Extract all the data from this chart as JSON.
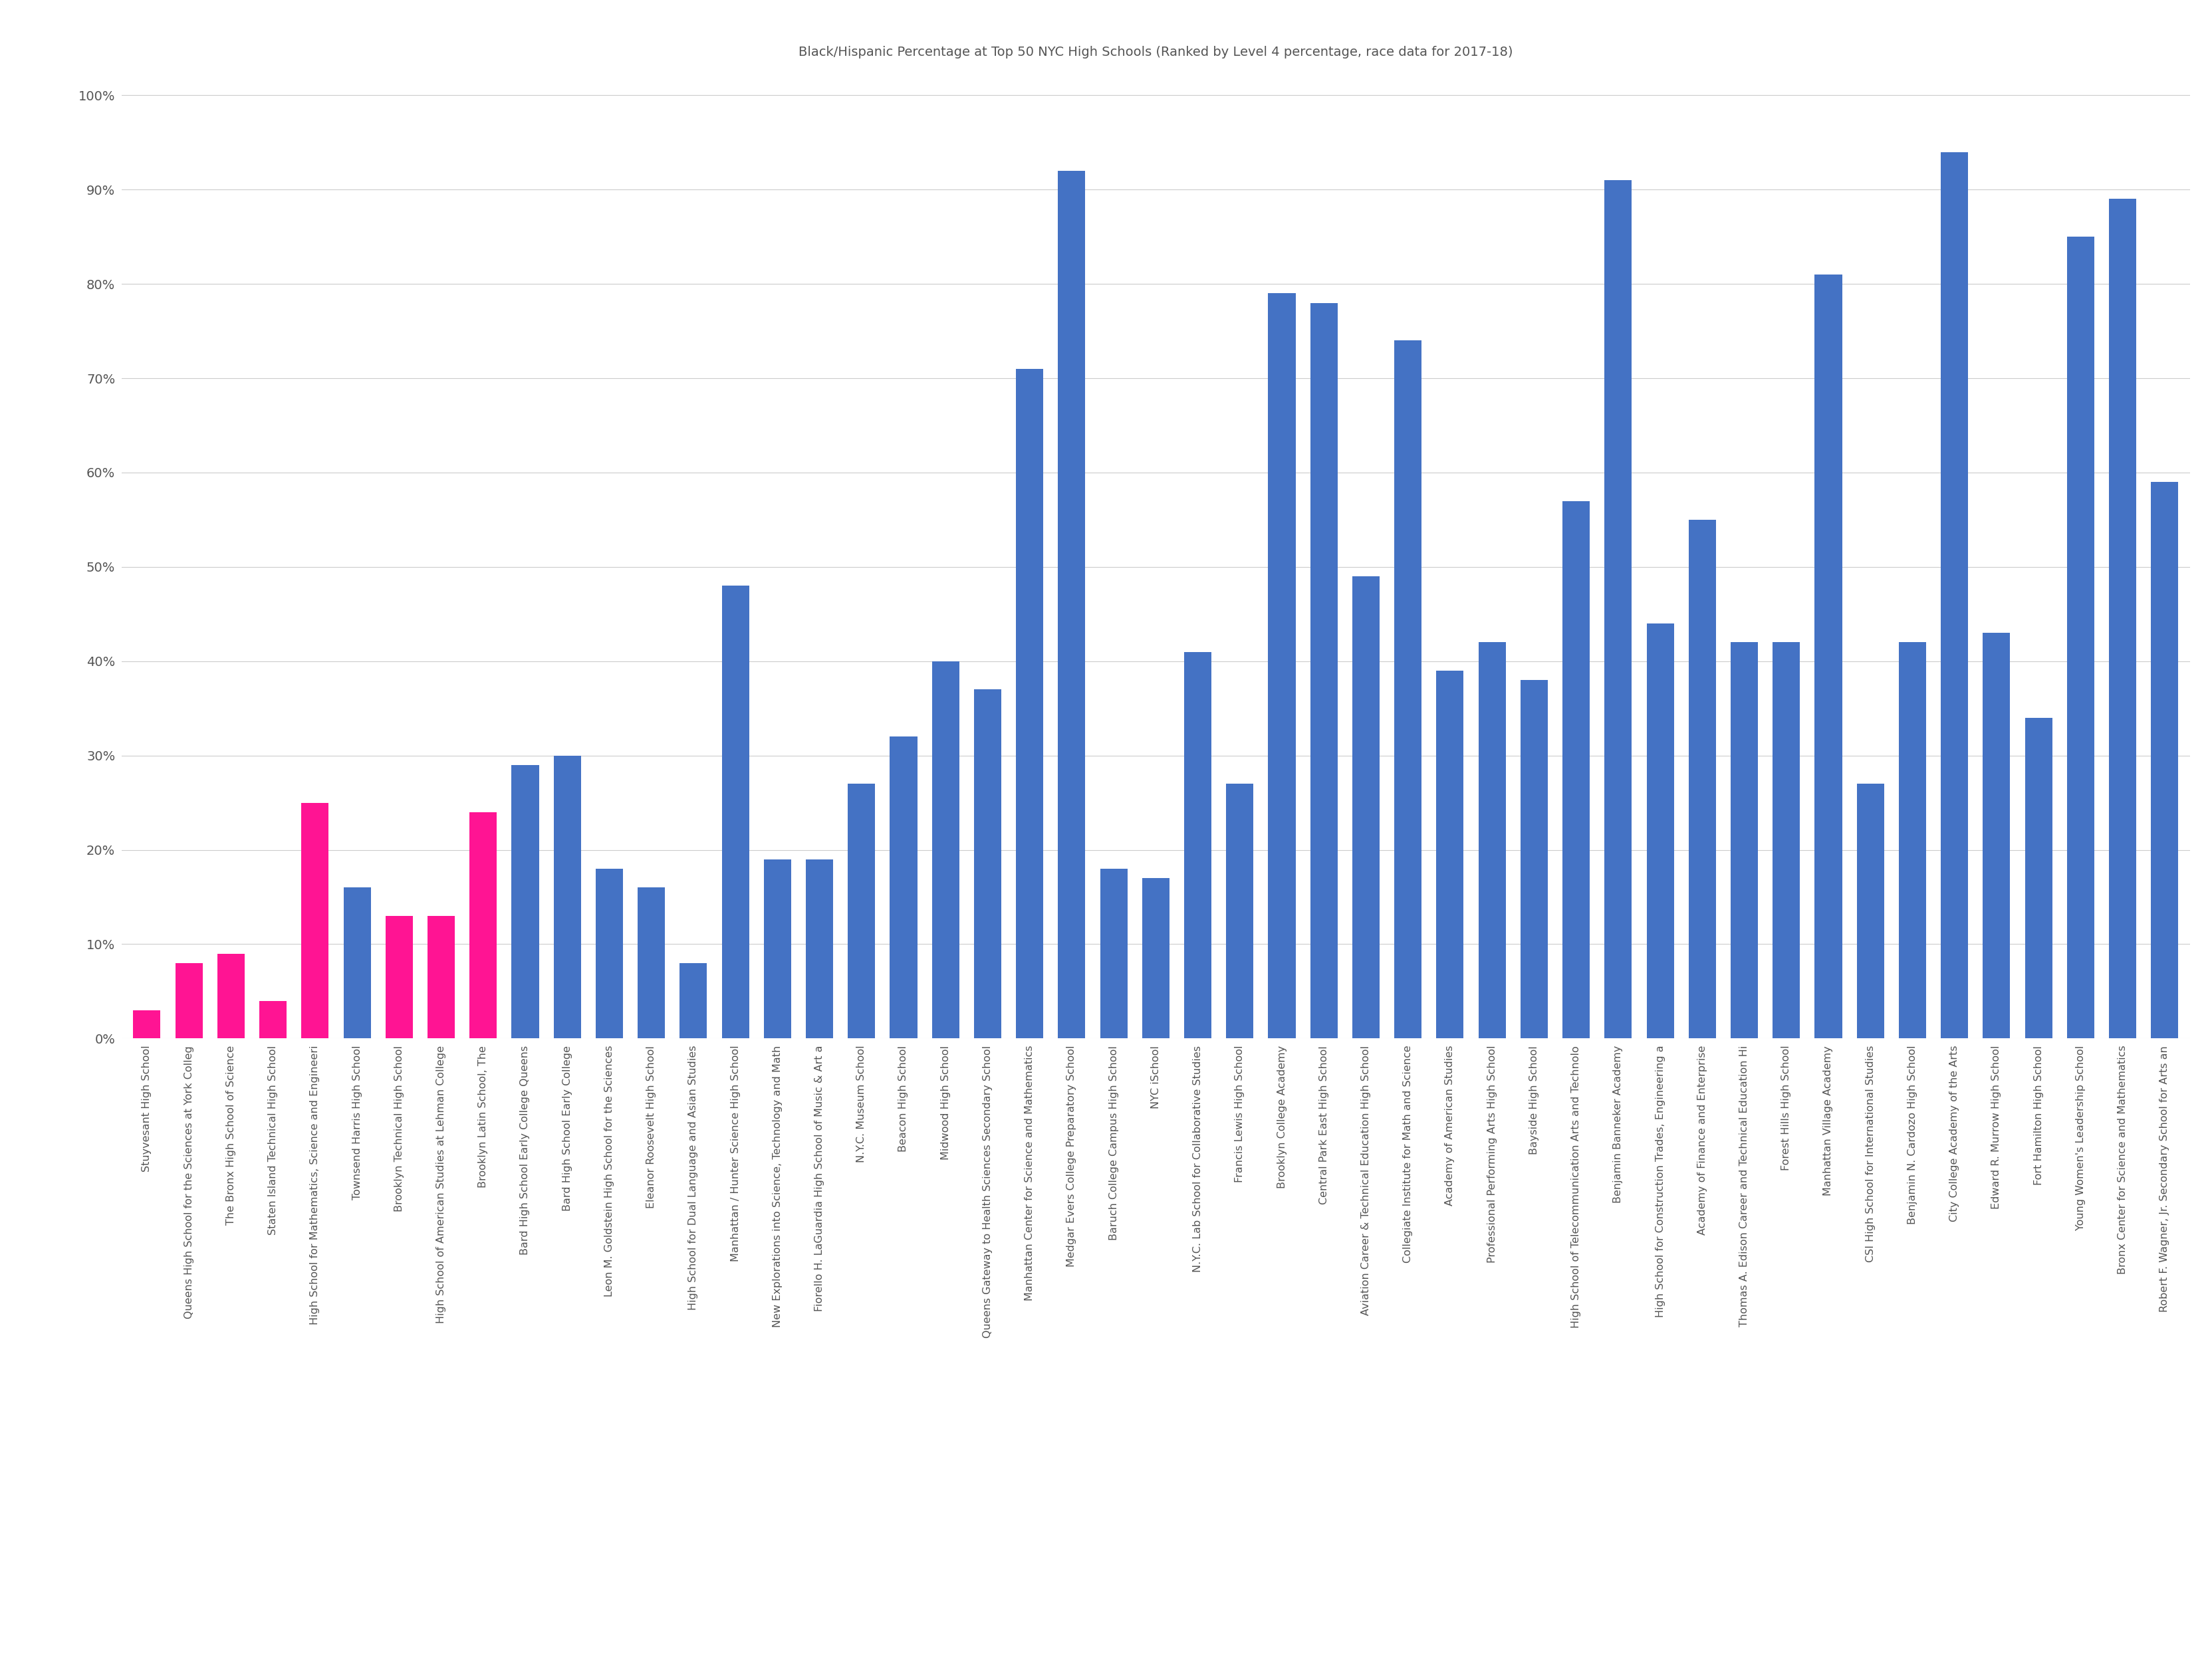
{
  "title": "Black/Hispanic Percentage at Top 50 NYC High Schools (Ranked by Level 4 percentage, race data for 2017-18)",
  "schools": [
    "Stuyvesant High School",
    "Queens High School for the Sciences at York Colleg",
    "The Bronx High School of Science",
    "Staten Island Technical High School",
    "High School for Mathematics, Science and Engineeri",
    "Townsend Harris High School",
    "Brooklyn Technical High School",
    "High School of American Studies at Lehman College",
    "Brooklyn Latin School, The",
    "Bard High School Early College Queens",
    "Bard High School Early College",
    "Leon M. Goldstein High School for the Sciences",
    "Eleanor Roosevelt High School",
    "High School for Dual Language and Asian Studies",
    "Manhattan / Hunter Science High School",
    "New Explorations into Science, Technology and Math",
    "Fiorello H. LaGuardia High School of Music & Art a",
    "N.Y.C. Museum School",
    "Beacon High School",
    "Midwood High School",
    "Queens Gateway to Health Sciences Secondary School",
    "Manhattan Center for Science and Mathematics",
    "Medgar Evers College Preparatory School",
    "Baruch College Campus High School",
    "NYC iSchool",
    "N.Y.C. Lab School for Collaborative Studies",
    "Francis Lewis High School",
    "Brooklyn College Academy",
    "Central Park East High School",
    "Aviation Career & Technical Education High School",
    "Collegiate Institute for Math and Science",
    "Academy of American Studies",
    "Professional Performing Arts High School",
    "Bayside High School",
    "High School of Telecommunication Arts and Technolo",
    "Benjamin Banneker Academy",
    "High School for Construction Trades, Engineering a",
    "Academy of Finance and Enterprise",
    "Thomas A. Edison Career and Technical Education Hi",
    "Forest Hills High School",
    "Manhattan Village Academy",
    "CSI High School for International Studies",
    "Benjamin N. Cardozo High School",
    "City College Academy of the Arts",
    "Edward R. Murrow High School",
    "Fort Hamilton High School",
    "Young Women's Leadership School",
    "Bronx Center for Science and Mathematics",
    "Robert F. Wagner, Jr. Secondary School for Arts an"
  ],
  "values": [
    3,
    8,
    9,
    4,
    25,
    16,
    13,
    13,
    24,
    29,
    30,
    18,
    16,
    8,
    48,
    19,
    19,
    27,
    32,
    40,
    37,
    71,
    92,
    18,
    17,
    41,
    27,
    79,
    78,
    49,
    74,
    39,
    42,
    38,
    57,
    91,
    44,
    55,
    42,
    42,
    81,
    27,
    42,
    94,
    43,
    34,
    85,
    89,
    59
  ],
  "colors": [
    "#FF1493",
    "#FF1493",
    "#FF1493",
    "#FF1493",
    "#FF1493",
    "#4472C4",
    "#FF1493",
    "#FF1493",
    "#FF1493",
    "#4472C4",
    "#4472C4",
    "#4472C4",
    "#4472C4",
    "#4472C4",
    "#4472C4",
    "#4472C4",
    "#4472C4",
    "#4472C4",
    "#4472C4",
    "#4472C4",
    "#4472C4",
    "#4472C4",
    "#4472C4",
    "#4472C4",
    "#4472C4",
    "#4472C4",
    "#4472C4",
    "#4472C4",
    "#4472C4",
    "#4472C4",
    "#4472C4",
    "#4472C4",
    "#4472C4",
    "#4472C4",
    "#4472C4",
    "#4472C4",
    "#4472C4",
    "#4472C4",
    "#4472C4",
    "#4472C4",
    "#4472C4",
    "#4472C4",
    "#4472C4",
    "#4472C4",
    "#4472C4",
    "#4472C4",
    "#4472C4",
    "#4472C4",
    "#4472C4"
  ],
  "yticks": [
    0,
    10,
    20,
    30,
    40,
    50,
    60,
    70,
    80,
    90,
    100
  ],
  "ylim": [
    0,
    103
  ],
  "background_color": "#FFFFFF",
  "grid_color": "#CCCCCC",
  "title_fontsize": 14,
  "ytick_fontsize": 14,
  "xtick_fontsize": 11.5,
  "bar_width": 0.65
}
